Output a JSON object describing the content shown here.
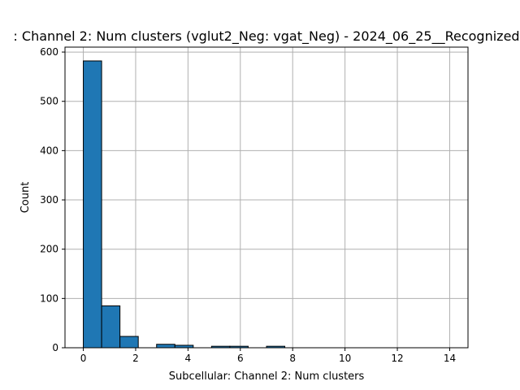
{
  "chart_data": {
    "type": "bar",
    "title": ": Channel 2: Num clusters (vglut2_Neg: vgat_Neg) - 2024_06_25__Recognized",
    "xlabel": "Subcellular: Channel 2: Num clusters",
    "ylabel": "Count",
    "xlim": [
      -0.7,
      14.7
    ],
    "ylim": [
      0,
      610
    ],
    "xticks": [
      0,
      2,
      4,
      6,
      8,
      10,
      12,
      14
    ],
    "yticks": [
      0,
      100,
      200,
      300,
      400,
      500,
      600
    ],
    "grid": true,
    "bin_width": 0.7,
    "bins": [
      {
        "x0": 0.0,
        "count": 582
      },
      {
        "x0": 0.7,
        "count": 85
      },
      {
        "x0": 1.4,
        "count": 23
      },
      {
        "x0": 2.1,
        "count": 0
      },
      {
        "x0": 2.8,
        "count": 7
      },
      {
        "x0": 3.5,
        "count": 5
      },
      {
        "x0": 4.2,
        "count": 0
      },
      {
        "x0": 4.9,
        "count": 3
      },
      {
        "x0": 5.6,
        "count": 3
      },
      {
        "x0": 6.3,
        "count": 0
      },
      {
        "x0": 7.0,
        "count": 3
      },
      {
        "x0": 7.7,
        "count": 0
      },
      {
        "x0": 8.4,
        "count": 0
      },
      {
        "x0": 9.1,
        "count": 0
      },
      {
        "x0": 9.8,
        "count": 0
      },
      {
        "x0": 10.5,
        "count": 0
      },
      {
        "x0": 11.2,
        "count": 0
      },
      {
        "x0": 11.9,
        "count": 0
      },
      {
        "x0": 12.6,
        "count": 0
      },
      {
        "x0": 13.3,
        "count": 0
      }
    ],
    "bar_color": "#1f77b4",
    "edge_color": "#000000",
    "grid_color": "#b0b0b0"
  }
}
